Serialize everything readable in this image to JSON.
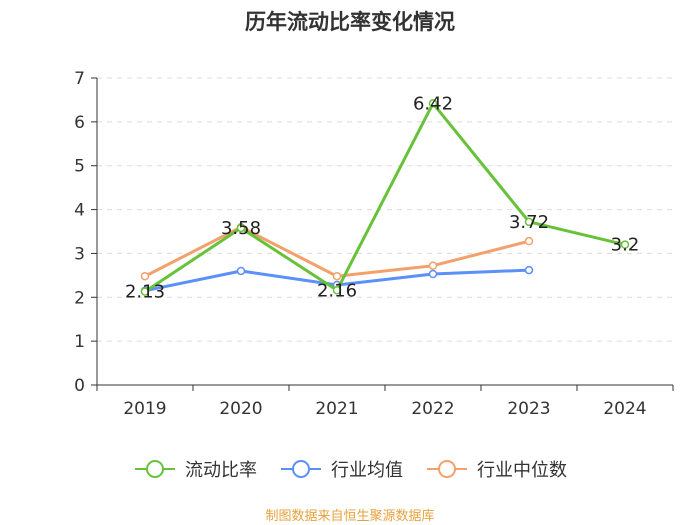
{
  "chart_data": {
    "type": "line",
    "title": "历年流动比率变化情况",
    "categories": [
      "2019",
      "2020",
      "2021",
      "2022",
      "2023",
      "2024"
    ],
    "xlabel": "",
    "ylabel": "",
    "ylim": [
      0,
      7
    ],
    "yticks": [
      "0",
      "1",
      "2",
      "3",
      "4",
      "5",
      "6",
      "7"
    ],
    "grid": true,
    "legend_position": "bottom-center",
    "series": [
      {
        "name": "流动比率",
        "color": "#67c23a",
        "values": [
          2.13,
          3.58,
          2.16,
          6.42,
          3.72,
          3.2
        ],
        "labels": [
          "2.13",
          "3.58",
          "2.16",
          "6.42",
          "3.72",
          "3.2"
        ]
      },
      {
        "name": "行业均值",
        "color": "#5b8ff9",
        "values": [
          2.15,
          2.6,
          2.28,
          2.53,
          2.62,
          null
        ]
      },
      {
        "name": "行业中位数",
        "color": "#f4a06b",
        "values": [
          2.48,
          3.6,
          2.48,
          2.72,
          3.28,
          null
        ]
      }
    ]
  },
  "source": "制图数据来自恒生聚源数据库"
}
